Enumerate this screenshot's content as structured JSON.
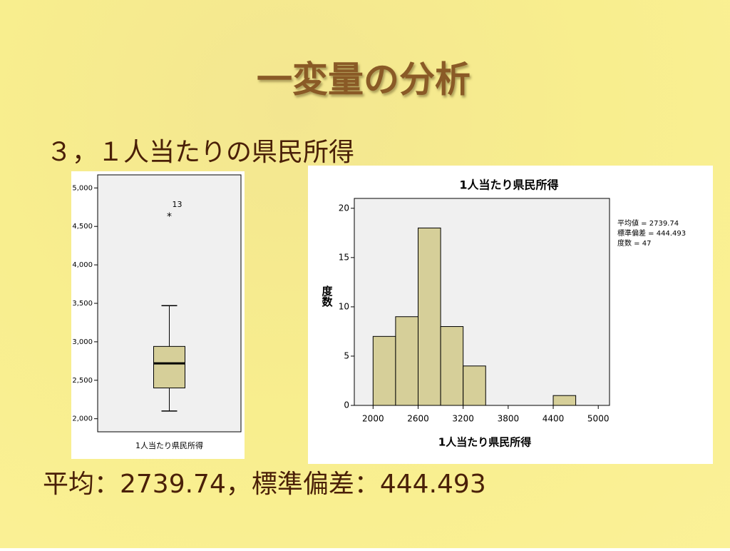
{
  "slide": {
    "title": "一変量の分析",
    "subtitle": "３，１人当たりの県民所得",
    "footer": "平均：2739.74，標準偏差：444.493"
  },
  "chart_data": [
    {
      "type": "box",
      "categories": [
        "1人当たり県民所得"
      ],
      "boxes": [
        {
          "min": 2100,
          "q1": 2400,
          "median": 2720,
          "q3": 2940,
          "max": 3470,
          "outliers": [
            {
              "value": 4650,
              "label": "13"
            }
          ]
        }
      ],
      "ylim": [
        1830,
        5170
      ],
      "yticks": [
        {
          "value": 2000,
          "label": "2,000"
        },
        {
          "value": 2500,
          "label": "2,500"
        },
        {
          "value": 3000,
          "label": "3,000"
        },
        {
          "value": 3500,
          "label": "3,500"
        },
        {
          "value": 4000,
          "label": "4,000"
        },
        {
          "value": 4500,
          "label": "4,500"
        },
        {
          "value": 5000,
          "label": "5,000"
        }
      ],
      "color": "#d6cf99"
    },
    {
      "type": "histogram",
      "title": "1人当たり県民所得",
      "x_label": "1人当たり県民所得",
      "y_label": "度数",
      "bins": [
        2000,
        2300,
        2600,
        2900,
        3200,
        3500,
        3800,
        4100,
        4400,
        4700
      ],
      "values": [
        7,
        9,
        18,
        8,
        4,
        0,
        0,
        0,
        1
      ],
      "xlim": [
        1750,
        5150
      ],
      "xticks": [
        2000,
        2600,
        3200,
        3800,
        4400,
        5000
      ],
      "ylim": [
        0,
        21
      ],
      "yticks": [
        0,
        5,
        10,
        15,
        20
      ],
      "annotations": [
        "平均値 = 2739.74",
        "標準偏差 = 444.493",
        "度数 = 47"
      ],
      "color": "#d6cf99"
    }
  ]
}
